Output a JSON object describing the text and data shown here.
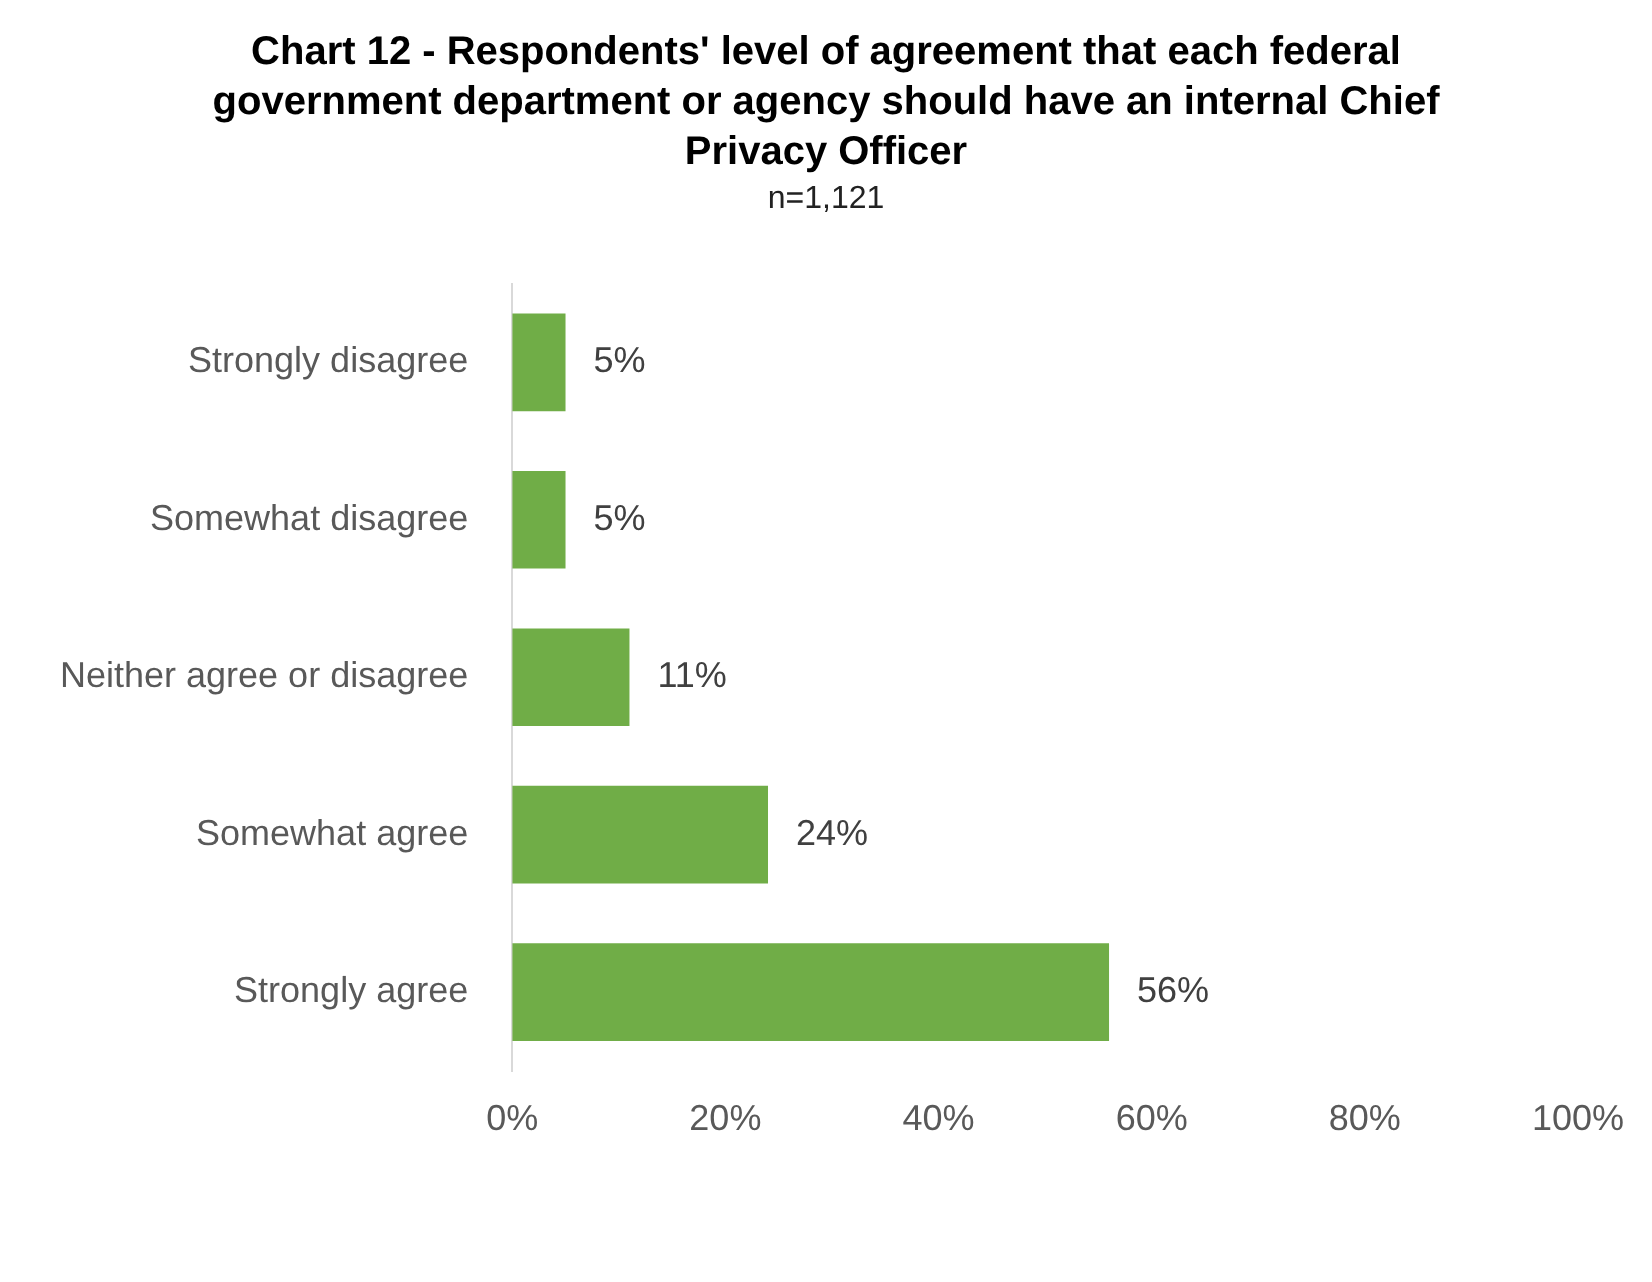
{
  "chart_data": {
    "type": "bar",
    "orientation": "horizontal",
    "title": "Chart 12 - Respondents' level of agreement that each federal government department or agency should have an internal Chief Privacy Officer",
    "subtitle": "n=1,121",
    "categories": [
      "Strongly disagree",
      "Somewhat disagree",
      "Neither agree or disagree",
      "Somewhat agree",
      "Strongly agree"
    ],
    "values": [
      5,
      5,
      11,
      24,
      56
    ],
    "value_labels": [
      "5%",
      "5%",
      "11%",
      "24%",
      "56%"
    ],
    "color": "#70ad47",
    "xlim": [
      0,
      100
    ],
    "xticks": [
      {
        "value": 0,
        "label": "0%"
      },
      {
        "value": 20,
        "label": "20%"
      },
      {
        "value": 40,
        "label": "40%"
      },
      {
        "value": 60,
        "label": "60%"
      },
      {
        "value": 80,
        "label": "80%"
      },
      {
        "value": 100,
        "label": "100%"
      }
    ],
    "legend": false
  }
}
